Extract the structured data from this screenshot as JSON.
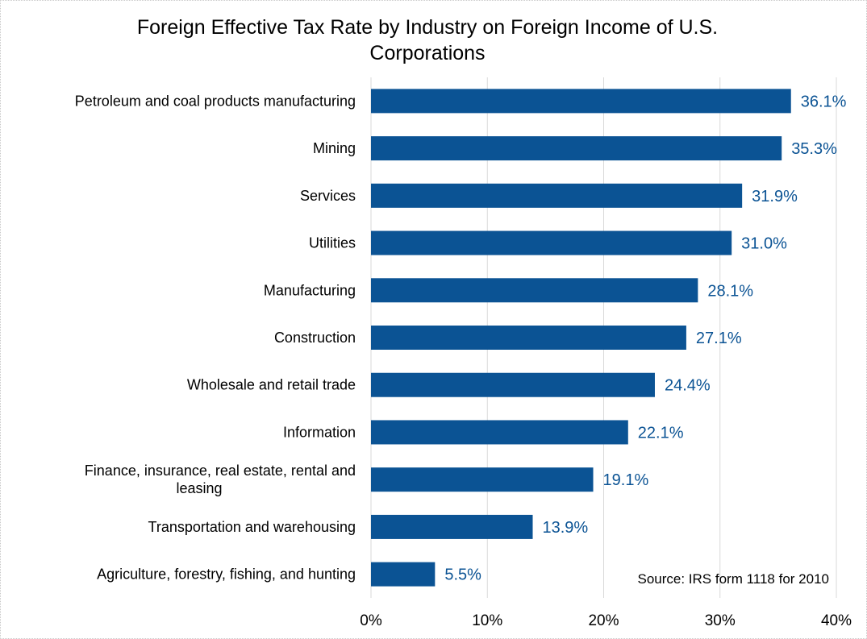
{
  "chart_data": {
    "type": "bar",
    "orientation": "horizontal",
    "title": "Foreign Effective Tax Rate by Industry on Foreign Income of U.S. Corporations",
    "title_lines": [
      "Foreign Effective Tax Rate by Industry on Foreign Income of U.S.",
      "Corporations"
    ],
    "categories": [
      [
        "Petroleum and coal products manufacturing"
      ],
      [
        "Mining"
      ],
      [
        "Services"
      ],
      [
        "Utilities"
      ],
      [
        "Manufacturing"
      ],
      [
        "Construction"
      ],
      [
        "Wholesale and retail trade"
      ],
      [
        "Information"
      ],
      [
        "Finance, insurance, real estate, rental and",
        "leasing"
      ],
      [
        "Transportation and warehousing"
      ],
      [
        "Agriculture, forestry, fishing, and hunting"
      ]
    ],
    "values": [
      36.1,
      35.3,
      31.9,
      31.0,
      28.1,
      27.1,
      24.4,
      22.1,
      19.1,
      13.9,
      5.5
    ],
    "data_labels": [
      "36.1%",
      "35.3%",
      "31.9%",
      "31.0%",
      "28.1%",
      "27.1%",
      "24.4%",
      "22.1%",
      "19.1%",
      "13.9%",
      "5.5%"
    ],
    "xlim": [
      0,
      40
    ],
    "x_ticks": [
      0,
      10,
      20,
      30,
      40
    ],
    "x_tick_labels": [
      "0%",
      "10%",
      "20%",
      "30%",
      "40%"
    ],
    "xlabel": "",
    "ylabel": "",
    "grid": "vertical",
    "bar_color": "#0b5394",
    "annotation": "Source: IRS form 1118 for 2010"
  }
}
